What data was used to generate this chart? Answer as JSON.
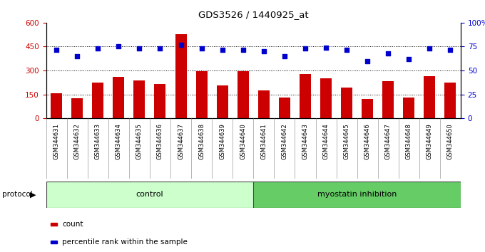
{
  "title": "GDS3526 / 1440925_at",
  "samples": [
    "GSM344631",
    "GSM344632",
    "GSM344633",
    "GSM344634",
    "GSM344635",
    "GSM344636",
    "GSM344637",
    "GSM344638",
    "GSM344639",
    "GSM344640",
    "GSM344641",
    "GSM344642",
    "GSM344643",
    "GSM344644",
    "GSM344645",
    "GSM344646",
    "GSM344647",
    "GSM344648",
    "GSM344649",
    "GSM344650"
  ],
  "bar_values": [
    160,
    125,
    225,
    260,
    240,
    215,
    530,
    295,
    205,
    295,
    175,
    130,
    280,
    250,
    195,
    120,
    235,
    130,
    265,
    225
  ],
  "pct_values": [
    72,
    65,
    73,
    75,
    73,
    73,
    77,
    73,
    72,
    72,
    70,
    65,
    73,
    74,
    72,
    60,
    68,
    62,
    73,
    72
  ],
  "control_count": 10,
  "bar_color": "#cc0000",
  "dot_color": "#0000cc",
  "control_color": "#ccffcc",
  "treatment_color": "#66cc66",
  "xticklabel_bg": "#cccccc",
  "control_label": "control",
  "treatment_label": "myostatin inhibition",
  "protocol_label": "protocol",
  "ylim_left": [
    0,
    600
  ],
  "ylim_right": [
    0,
    100
  ],
  "yticks_left": [
    0,
    150,
    300,
    450,
    600
  ],
  "ytick_labels_left": [
    "0",
    "150",
    "300",
    "450",
    "600"
  ],
  "yticks_right": [
    0,
    25,
    50,
    75,
    100
  ],
  "ytick_labels_right": [
    "0",
    "25",
    "50",
    "75",
    "100%"
  ],
  "grid_ticks": [
    150,
    300,
    450
  ],
  "legend_items": [
    {
      "label": "count",
      "color": "#cc0000"
    },
    {
      "label": "percentile rank within the sample",
      "color": "#0000cc"
    }
  ],
  "bg_color": "#ffffff"
}
